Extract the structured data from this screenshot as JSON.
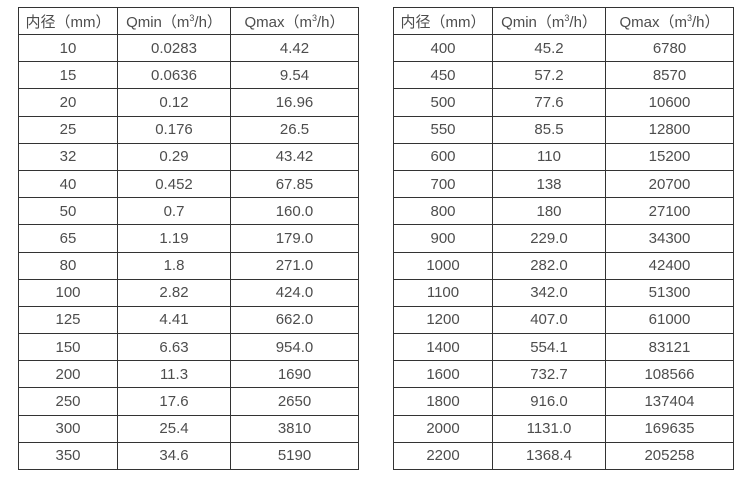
{
  "page": {
    "background_color": "#ffffff",
    "border_color": "#333333",
    "text_color": "#4d4d4d"
  },
  "tables": [
    {
      "headers": [
        {
          "pre": "内径（mm）",
          "sup": "",
          "post": ""
        },
        {
          "pre": "Qmin（m",
          "sup": "3",
          "post": "/h）"
        },
        {
          "pre": "Qmax（m",
          "sup": "3",
          "post": "/h）"
        }
      ],
      "rows": [
        [
          "10",
          "0.0283",
          "4.42"
        ],
        [
          "15",
          "0.0636",
          "9.54"
        ],
        [
          "20",
          "0.12",
          "16.96"
        ],
        [
          "25",
          "0.176",
          "26.5"
        ],
        [
          "32",
          "0.29",
          "43.42"
        ],
        [
          "40",
          "0.452",
          "67.85"
        ],
        [
          "50",
          "0.7",
          "160.0"
        ],
        [
          "65",
          "1.19",
          "179.0"
        ],
        [
          "80",
          "1.8",
          "271.0"
        ],
        [
          "100",
          "2.82",
          "424.0"
        ],
        [
          "125",
          "4.41",
          "662.0"
        ],
        [
          "150",
          "6.63",
          "954.0"
        ],
        [
          "200",
          "11.3",
          "1690"
        ],
        [
          "250",
          "17.6",
          "2650"
        ],
        [
          "300",
          "25.4",
          "3810"
        ],
        [
          "350",
          "34.6",
          "5190"
        ]
      ]
    },
    {
      "headers": [
        {
          "pre": "内径（mm）",
          "sup": "",
          "post": ""
        },
        {
          "pre": "Qmin（m",
          "sup": "3",
          "post": "/h）"
        },
        {
          "pre": "Qmax（m",
          "sup": "3",
          "post": "/h）"
        }
      ],
      "rows": [
        [
          "400",
          "45.2",
          "6780"
        ],
        [
          "450",
          "57.2",
          "8570"
        ],
        [
          "500",
          "77.6",
          "10600"
        ],
        [
          "550",
          "85.5",
          "12800"
        ],
        [
          "600",
          "110",
          "15200"
        ],
        [
          "700",
          "138",
          "20700"
        ],
        [
          "800",
          "180",
          "27100"
        ],
        [
          "900",
          "229.0",
          "34300"
        ],
        [
          "1000",
          "282.0",
          "42400"
        ],
        [
          "1100",
          "342.0",
          "51300"
        ],
        [
          "1200",
          "407.0",
          "61000"
        ],
        [
          "1400",
          "554.1",
          "83121"
        ],
        [
          "1600",
          "732.7",
          "108566"
        ],
        [
          "1800",
          "916.0",
          "137404"
        ],
        [
          "2000",
          "1131.0",
          "169635"
        ],
        [
          "2200",
          "1368.4",
          "205258"
        ]
      ]
    }
  ]
}
